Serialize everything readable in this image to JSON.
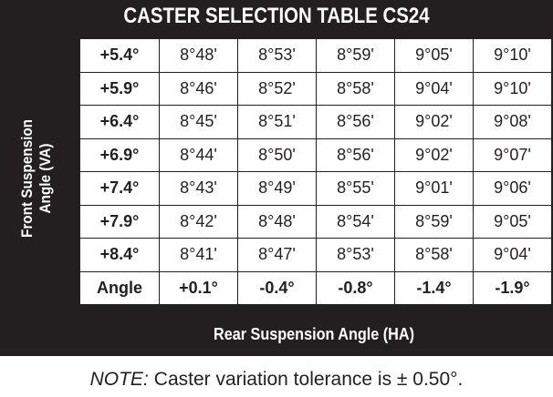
{
  "title": "CASTER SELECTION TABLE CS24",
  "row_axis_label": "Front Suspension Angle (VA)",
  "column_axis_label": "Rear Suspension Angle (HA)",
  "table": {
    "rows": [
      [
        "+5.4°",
        "8°48'",
        "8°53'",
        "8°59'",
        "9°05'",
        "9°10'"
      ],
      [
        "+5.9°",
        "8°46'",
        "8°52'",
        "8°58'",
        "9°04'",
        "9°10'"
      ],
      [
        "+6.4°",
        "8°45'",
        "8°51'",
        "8°56'",
        "9°02'",
        "9°08'"
      ],
      [
        "+6.9°",
        "8°44'",
        "8°50'",
        "8°56'",
        "9°02'",
        "9°07'"
      ],
      [
        "+7.4°",
        "8°43'",
        "8°49'",
        "8°55'",
        "9°01'",
        "9°06'"
      ],
      [
        "+7.9°",
        "8°42'",
        "8°48'",
        "8°54'",
        "8°59'",
        "9°05'"
      ],
      [
        "+8.4°",
        "8°41'",
        "8°47'",
        "8°53'",
        "8°58'",
        "9°04'"
      ],
      [
        "Angle",
        "+0.1°",
        "-0.4°",
        "-0.8°",
        "-1.4°",
        "-1.9°"
      ]
    ]
  },
  "note": {
    "label": "NOTE:",
    "text": "Caster variation tolerance is ± 0.50°."
  }
}
